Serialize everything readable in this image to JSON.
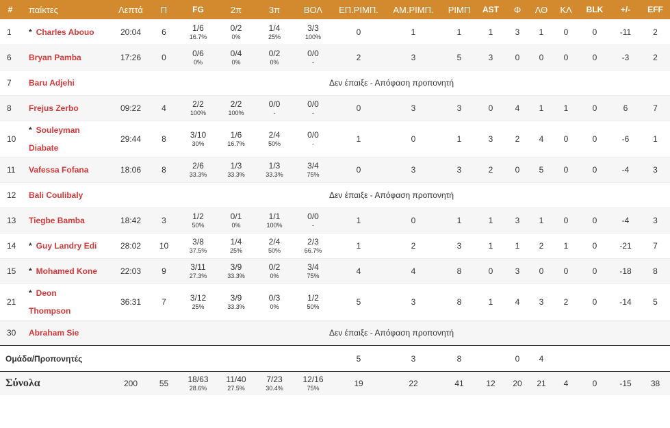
{
  "table": {
    "header": [
      "#",
      "παίκτες",
      "Λεπτά",
      "Π",
      "FG",
      "2π",
      "3π",
      "ΒΟΛ",
      "ΕΠ.ΡΙΜΠ.",
      "ΑΜ.ΡΙΜΠ.",
      "ΡΙΜΠ",
      "AST",
      "Φ",
      "ΛΘ",
      "ΚΛ",
      "BLK",
      "+/-",
      "EFF"
    ],
    "players": [
      {
        "number": 1,
        "starter": "*",
        "name": "Charles Abouo",
        "cells": [
          "20:04",
          6,
          {
            "ratio": "1/6",
            "pct": "16.7%"
          },
          {
            "ratio": "0/2",
            "pct": "0%"
          },
          {
            "ratio": "1/4",
            "pct": "25%"
          },
          {
            "ratio": "3/3",
            "pct": "100%"
          },
          0,
          1,
          1,
          1,
          3,
          1,
          0,
          0,
          -11,
          2
        ]
      },
      {
        "number": 6,
        "name": "Bryan Pamba",
        "cells": [
          "17:26",
          0,
          {
            "ratio": "0/6",
            "pct": "0%"
          },
          {
            "ratio": "0/4",
            "pct": "0%"
          },
          {
            "ratio": "0/2",
            "pct": "0%"
          },
          {
            "ratio": "0/0",
            "pct": "-"
          },
          2,
          3,
          5,
          3,
          0,
          0,
          0,
          0,
          -3,
          2
        ]
      },
      {
        "number": 7,
        "name": "Baru Adjehi",
        "dnp": "Δεν έπαιξε - Απόφαση προπονητή"
      },
      {
        "number": 8,
        "name": "Frejus Zerbo",
        "cells": [
          "09:22",
          4,
          {
            "ratio": "2/2",
            "pct": "100%"
          },
          {
            "ratio": "2/2",
            "pct": "100%"
          },
          {
            "ratio": "0/0",
            "pct": "-"
          },
          {
            "ratio": "0/0",
            "pct": "-"
          },
          0,
          3,
          3,
          0,
          4,
          1,
          1,
          0,
          6,
          7
        ]
      },
      {
        "number": 10,
        "starter": "*",
        "name": "Souleyman Diabate",
        "cells": [
          "29:44",
          8,
          {
            "ratio": "3/10",
            "pct": "30%"
          },
          {
            "ratio": "1/6",
            "pct": "16.7%"
          },
          {
            "ratio": "2/4",
            "pct": "50%"
          },
          {
            "ratio": "0/0",
            "pct": "-"
          },
          1,
          0,
          1,
          3,
          2,
          4,
          0,
          0,
          -6,
          1
        ]
      },
      {
        "number": 11,
        "name": "Vafessa Fofana",
        "cells": [
          "18:06",
          8,
          {
            "ratio": "2/6",
            "pct": "33.3%"
          },
          {
            "ratio": "1/3",
            "pct": "33.3%"
          },
          {
            "ratio": "1/3",
            "pct": "33.3%"
          },
          {
            "ratio": "3/4",
            "pct": "75%"
          },
          0,
          3,
          3,
          2,
          0,
          5,
          0,
          0,
          -4,
          3
        ]
      },
      {
        "number": 12,
        "name": "Bali Coulibaly",
        "dnp": "Δεν έπαιξε - Απόφαση προπονητή"
      },
      {
        "number": 13,
        "name": "Tiegbe Bamba",
        "cells": [
          "18:42",
          3,
          {
            "ratio": "1/2",
            "pct": "50%"
          },
          {
            "ratio": "0/1",
            "pct": "0%"
          },
          {
            "ratio": "1/1",
            "pct": "100%"
          },
          {
            "ratio": "0/0",
            "pct": "-"
          },
          1,
          0,
          1,
          1,
          3,
          1,
          0,
          0,
          -4,
          3
        ]
      },
      {
        "number": 14,
        "starter": "*",
        "name": "Guy Landry Edi",
        "cells": [
          "28:02",
          10,
          {
            "ratio": "3/8",
            "pct": "37.5%"
          },
          {
            "ratio": "1/4",
            "pct": "25%"
          },
          {
            "ratio": "2/4",
            "pct": "50%"
          },
          {
            "ratio": "2/3",
            "pct": "66.7%"
          },
          1,
          2,
          3,
          1,
          1,
          2,
          1,
          0,
          -21,
          7
        ]
      },
      {
        "number": 15,
        "starter": "*",
        "name": "Mohamed Kone",
        "cells": [
          "22:03",
          9,
          {
            "ratio": "3/11",
            "pct": "27.3%"
          },
          {
            "ratio": "3/9",
            "pct": "33.3%"
          },
          {
            "ratio": "0/2",
            "pct": "0%"
          },
          {
            "ratio": "3/4",
            "pct": "75%"
          },
          4,
          4,
          8,
          0,
          3,
          0,
          0,
          0,
          -18,
          8
        ]
      },
      {
        "number": 21,
        "starter": "*",
        "name": "Deon Thompson",
        "cells": [
          "36:31",
          7,
          {
            "ratio": "3/12",
            "pct": "25%"
          },
          {
            "ratio": "3/9",
            "pct": "33.3%"
          },
          {
            "ratio": "0/3",
            "pct": "0%"
          },
          {
            "ratio": "1/2",
            "pct": "50%"
          },
          5,
          3,
          8,
          1,
          4,
          3,
          2,
          0,
          -14,
          5
        ]
      },
      {
        "number": 30,
        "name": "Abraham Sie",
        "dnp": "Δεν έπαιξε - Απόφαση προπονητή"
      }
    ],
    "team": {
      "label": "Ομάδα/Προπονητές",
      "cells": [
        null,
        null,
        null,
        null,
        null,
        null,
        5,
        3,
        8,
        null,
        0,
        4,
        null,
        null,
        null,
        null
      ]
    },
    "totals": {
      "label": "Σύνολα",
      "cells": [
        200,
        55,
        {
          "ratio": "18/63",
          "pct": "28.6%"
        },
        {
          "ratio": "11/40",
          "pct": "27.5%"
        },
        {
          "ratio": "7/23",
          "pct": "30.4%"
        },
        {
          "ratio": "12/16",
          "pct": "75%"
        },
        19,
        22,
        41,
        12,
        20,
        21,
        4,
        0,
        -15,
        38
      ]
    }
  }
}
